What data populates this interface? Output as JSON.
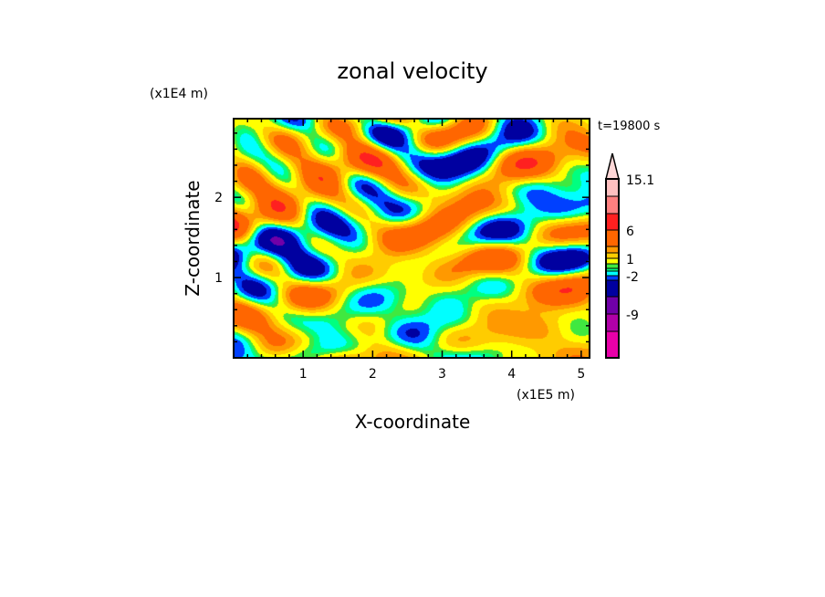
{
  "chart_data": {
    "type": "heatmap",
    "subtype": "filled-contour",
    "title": "zonal velocity",
    "xlabel": "X-coordinate",
    "ylabel": "Z-coordinate",
    "x_unit_label": "(x1E5 m)",
    "y_unit_label": "(x1E4 m)",
    "annotation": "t=19800 s",
    "xlim": [
      0,
      5.12
    ],
    "ylim": [
      0,
      2.98
    ],
    "xticks": [
      1,
      2,
      3,
      4,
      5
    ],
    "xtick_labels": [
      "1",
      "2",
      "3",
      "4",
      "5"
    ],
    "yticks": [
      1,
      2
    ],
    "ytick_labels": [
      "1",
      "2"
    ],
    "colorbar": {
      "max_label": "15.1",
      "tick_labels": [
        {
          "value": 15.1,
          "label": "15.1"
        },
        {
          "value": 6,
          "label": "6"
        },
        {
          "value": 1,
          "label": "1"
        },
        {
          "value": -2,
          "label": "-2"
        },
        {
          "value": -9,
          "label": "-9"
        }
      ],
      "extend": "max",
      "extend_color": "#ffd8d8",
      "levels": [
        {
          "from": 12,
          "to": 15.1,
          "color": "#ffc0c0"
        },
        {
          "from": 9,
          "to": 12,
          "color": "#ff8080"
        },
        {
          "from": 6,
          "to": 9,
          "color": "#ff2020"
        },
        {
          "from": 3,
          "to": 6,
          "color": "#ff6600"
        },
        {
          "from": 2,
          "to": 3,
          "color": "#ff9900"
        },
        {
          "from": 1,
          "to": 2,
          "color": "#ffcc00"
        },
        {
          "from": 0,
          "to": 1,
          "color": "#ffff00"
        },
        {
          "from": -0.5,
          "to": 0,
          "color": "#40e840"
        },
        {
          "from": -1,
          "to": -0.5,
          "color": "#00ff80"
        },
        {
          "from": -2,
          "to": -1,
          "color": "#00ffff"
        },
        {
          "from": -3,
          "to": -2,
          "color": "#0040ff"
        },
        {
          "from": -6,
          "to": -3,
          "color": "#0000a0"
        },
        {
          "from": -9,
          "to": -6,
          "color": "#7000a8"
        },
        {
          "from": -12,
          "to": -9,
          "color": "#b000a8"
        },
        {
          "from": -15,
          "to": -12,
          "color": "#e800a8"
        }
      ]
    }
  }
}
